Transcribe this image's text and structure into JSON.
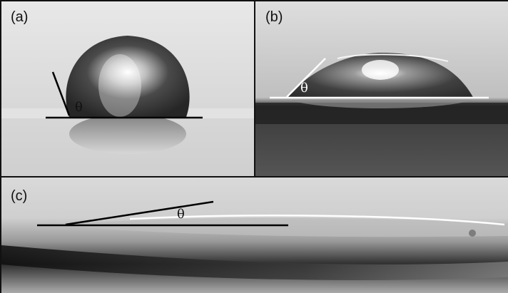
{
  "panels": [
    {
      "id": "a",
      "label": "(a)",
      "angle_symbol": "θ"
    },
    {
      "id": "b",
      "label": "(b)",
      "angle_symbol": "θ"
    },
    {
      "id": "c",
      "label": "(c)",
      "angle_symbol": "θ"
    }
  ],
  "colors": {
    "frame": "#111111",
    "tangent_line_a": "#000000",
    "tangent_line_b": "#ffffff",
    "tangent_line_c": "#000000"
  }
}
